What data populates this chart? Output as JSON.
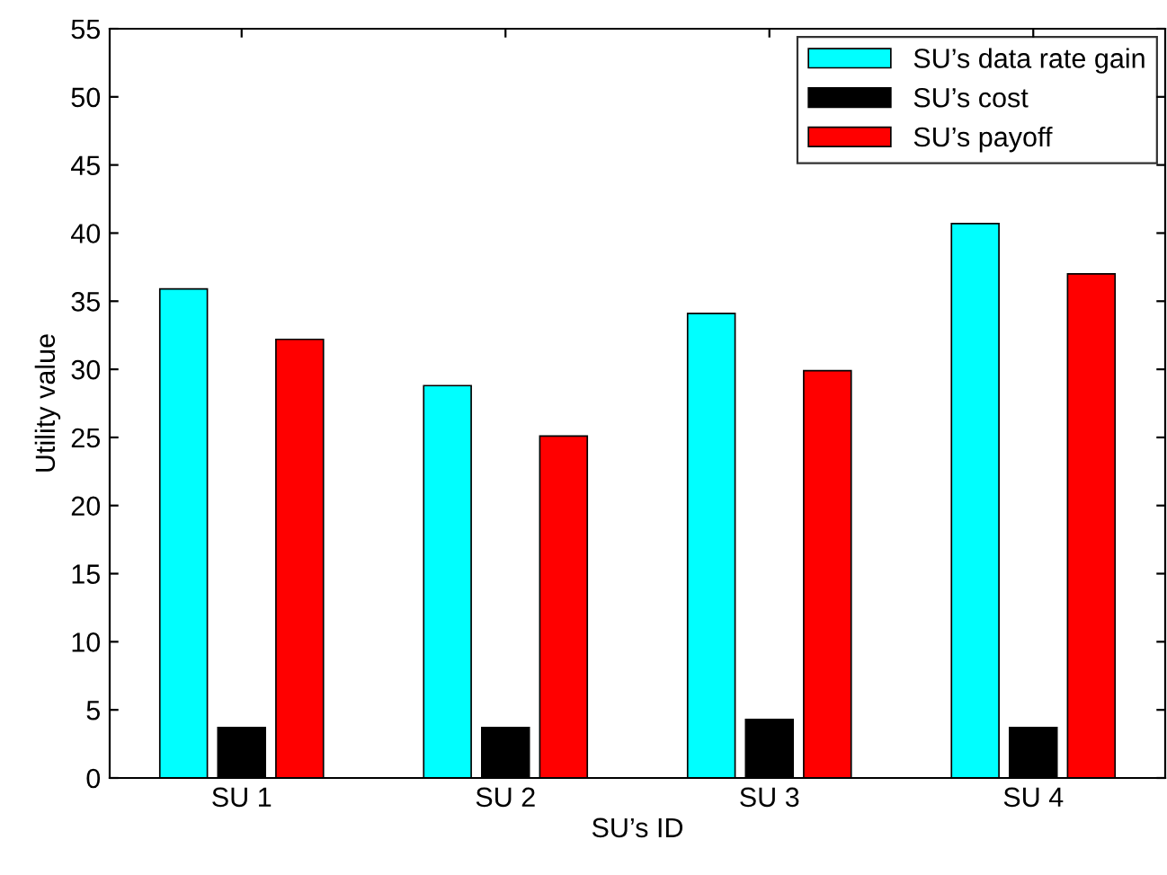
{
  "chart_data": {
    "type": "bar",
    "xlabel": "SU’s ID",
    "ylabel": "Utility value",
    "categories": [
      "SU 1",
      "SU 2",
      "SU 3",
      "SU 4"
    ],
    "series": [
      {
        "name": "SU’s data rate gain",
        "color": "#00ffff",
        "values": [
          35.9,
          28.8,
          34.1,
          40.7
        ]
      },
      {
        "name": "SU’s cost",
        "color": "#000000",
        "values": [
          3.7,
          3.7,
          4.3,
          3.7
        ]
      },
      {
        "name": "SU’s payoff",
        "color": "#ff0000",
        "values": [
          32.2,
          25.1,
          29.9,
          37.0
        ]
      }
    ],
    "ylim": [
      0,
      55
    ],
    "yticks": [
      0,
      5,
      10,
      15,
      20,
      25,
      30,
      35,
      40,
      45,
      50,
      55
    ],
    "legend": "top right",
    "grid": false
  }
}
